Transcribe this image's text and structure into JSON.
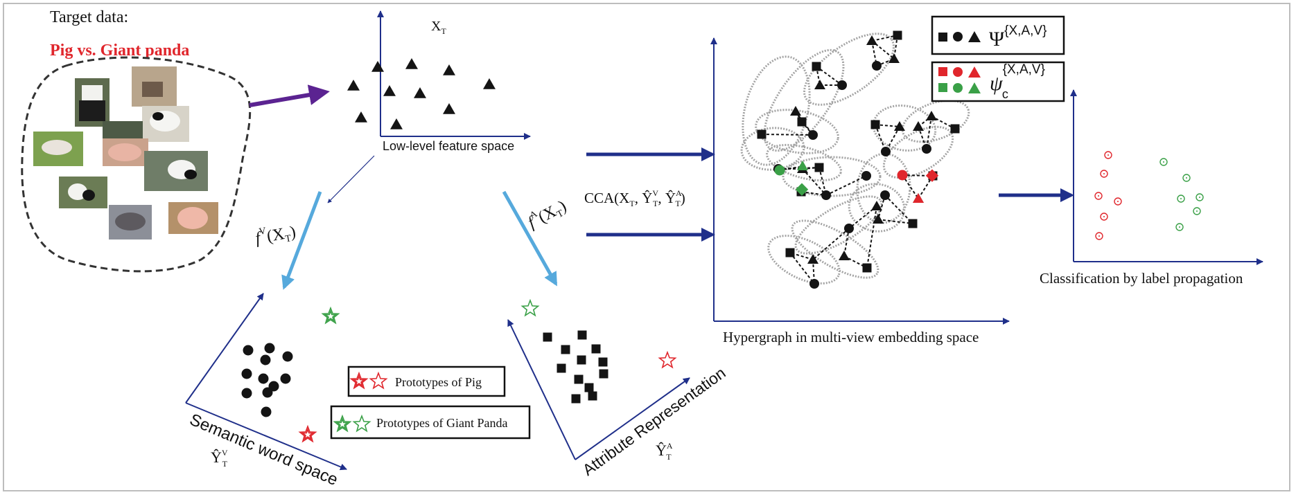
{
  "target": {
    "heading": "Target data:",
    "subtitle": "Pig vs. Giant panda"
  },
  "low_level": {
    "label": "Low-level feature space",
    "xt": "X",
    "xt_sub": "T"
  },
  "semantic": {
    "label": "Semantic word space",
    "y_symbol": "Ŷ",
    "y_sup": "V",
    "y_sub": "T",
    "f_label": "f",
    "f_sup": "V",
    "f_arg": "(X",
    "f_arg_sub": "T",
    "f_close": ")"
  },
  "attribute": {
    "label": "Attribute Representation",
    "y_symbol": "Ŷ",
    "y_sup": "A",
    "y_sub": "T",
    "f_label": "f",
    "f_sup": "A",
    "f_arg": "(X",
    "f_arg_sub": "T",
    "f_close": ")"
  },
  "cca": {
    "text": "CCA(X",
    "p1_sub": "T",
    "p2": ", Ŷ",
    "p2_sup": "V",
    "p2_sub": "T",
    "p3": ", Ŷ",
    "p3_sup": "A",
    "p3_sub": "T",
    "close": ")"
  },
  "legend": {
    "pig": "Prototypes of Pig",
    "panda": "Prototypes of Giant Panda"
  },
  "hypergraph": {
    "label": "Hypergraph in multi-view embedding space"
  },
  "psi": {
    "big": "Ψ",
    "big_sup": "{X,A,V}",
    "small": "ψ",
    "small_sup": "{X,A,V}",
    "small_sub": "c"
  },
  "classification": {
    "label": "Classification by label propagation"
  },
  "colors": {
    "arrow_navy": "#1f2f8a",
    "arrow_light_blue": "#56a9dc",
    "arrow_purple": "#5b2391",
    "red": "#e0262c",
    "green": "#3aa047",
    "black": "#141414"
  }
}
